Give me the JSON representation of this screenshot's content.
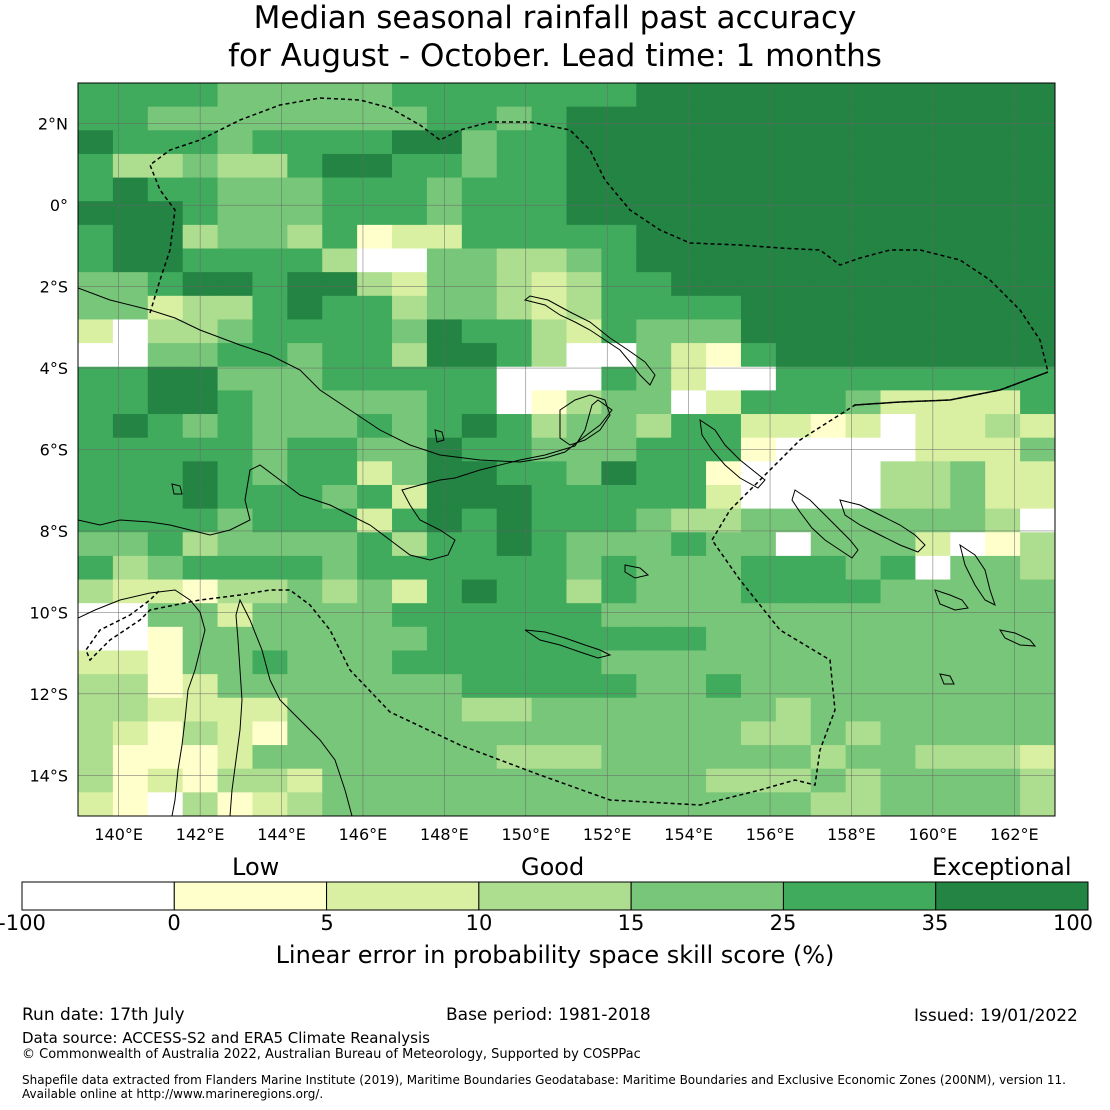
{
  "title_line1": "Median seasonal rainfall past accuracy",
  "title_line2": "for August - October. Lead time: 1 months",
  "map": {
    "lon_labels": [
      "140°E",
      "142°E",
      "144°E",
      "146°E",
      "148°E",
      "150°E",
      "152°E",
      "154°E",
      "156°E",
      "158°E",
      "160°E",
      "162°E"
    ],
    "lat_labels": [
      "2°N",
      "0°",
      "2°S",
      "4°S",
      "6°S",
      "8°S",
      "10°S",
      "12°S",
      "14°S"
    ],
    "lon_range": [
      139,
      163
    ],
    "lat_range": [
      -15,
      3
    ]
  },
  "colorbar": {
    "categories": [
      "Low",
      "Good",
      "Exceptional"
    ],
    "ticks": [
      "-100",
      "0",
      "5",
      "10",
      "15",
      "25",
      "35",
      "100"
    ],
    "colors": [
      "#ffffff",
      "#ffffcc",
      "#d9f0a3",
      "#addd8e",
      "#78c679",
      "#41ab5d",
      "#238443"
    ],
    "label": "Linear error in probability space skill score (%)"
  },
  "footer": {
    "run_date": "Run date: 17th July",
    "base_period": "Base period: 1981-2018",
    "issued": "Issued: 19/01/2022",
    "data_source": "Data source: ACCESS-S2 and ERA5 Climate Reanalysis",
    "copyright": "© Commonwealth of Australia 2022, Australian Bureau of Meteorology, Supported by COSPPac",
    "shapefile_line1": "Shapefile data extracted from Flanders Marine Institute (2019), Maritime Boundaries Geodatabase: Maritime Boundaries and Exclusive Economic Zones (200NM), version 11.",
    "shapefile_line2": "Available online at http://www.marineregions.org/."
  }
}
